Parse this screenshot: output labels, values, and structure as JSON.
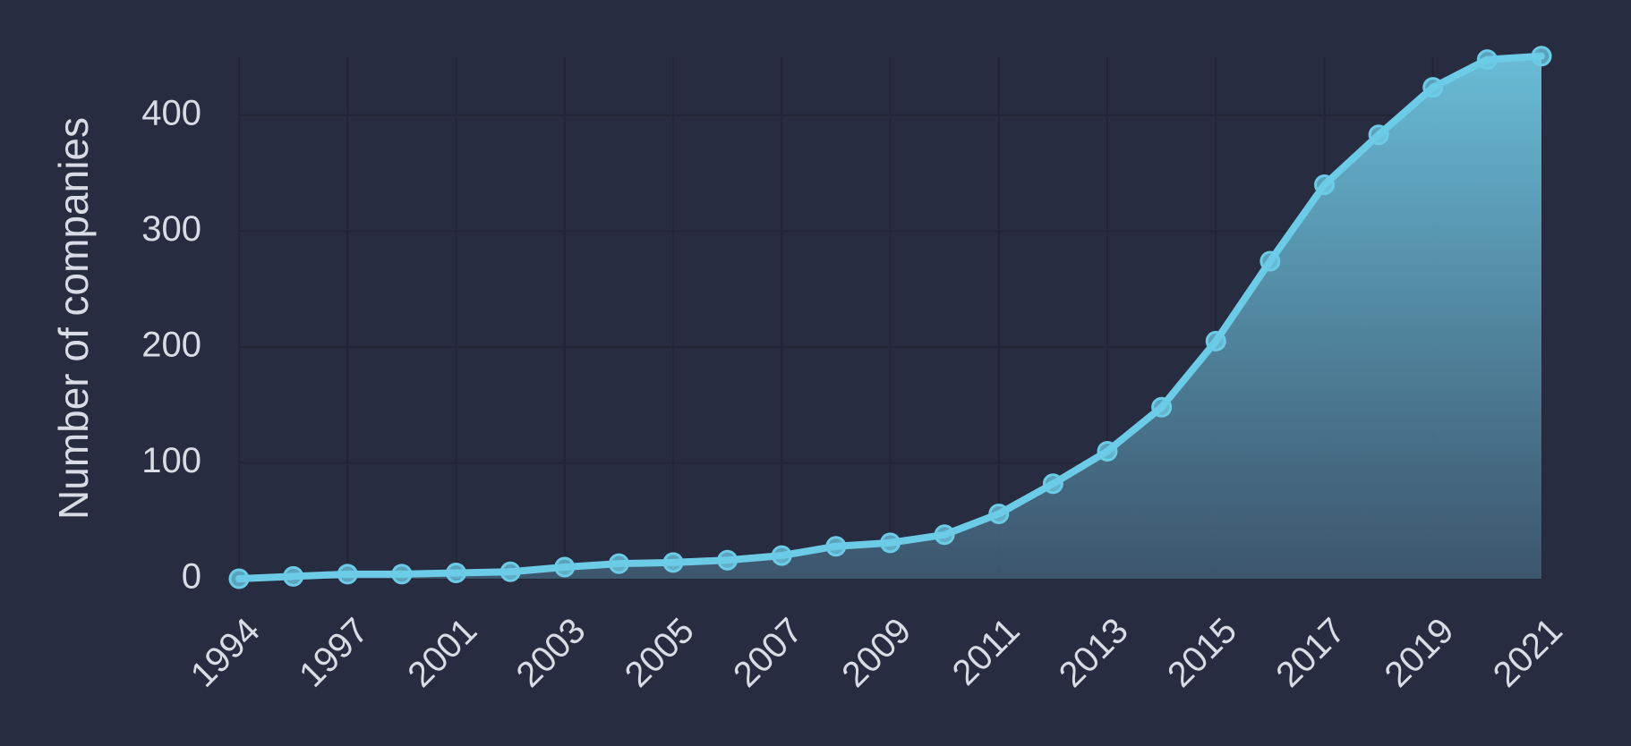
{
  "chart_data": {
    "type": "area",
    "y_label": "Number of companies",
    "categories": [
      "1994",
      null,
      "1997",
      null,
      "2001",
      null,
      "2003",
      null,
      "2005",
      null,
      "2007",
      null,
      "2009",
      null,
      "2011",
      null,
      "2013",
      null,
      "2015",
      null,
      "2017",
      null,
      "2019",
      null,
      "2021"
    ],
    "values": [
      0,
      2,
      4,
      4,
      5,
      6,
      10,
      13,
      14,
      16,
      20,
      28,
      31,
      38,
      56,
      82,
      110,
      148,
      205,
      274,
      340,
      383,
      424,
      448,
      451
    ],
    "color": "#6ccbe6",
    "ylim": [
      0,
      450
    ],
    "yticks": [
      0,
      100,
      200,
      300,
      400
    ],
    "grid": true
  }
}
